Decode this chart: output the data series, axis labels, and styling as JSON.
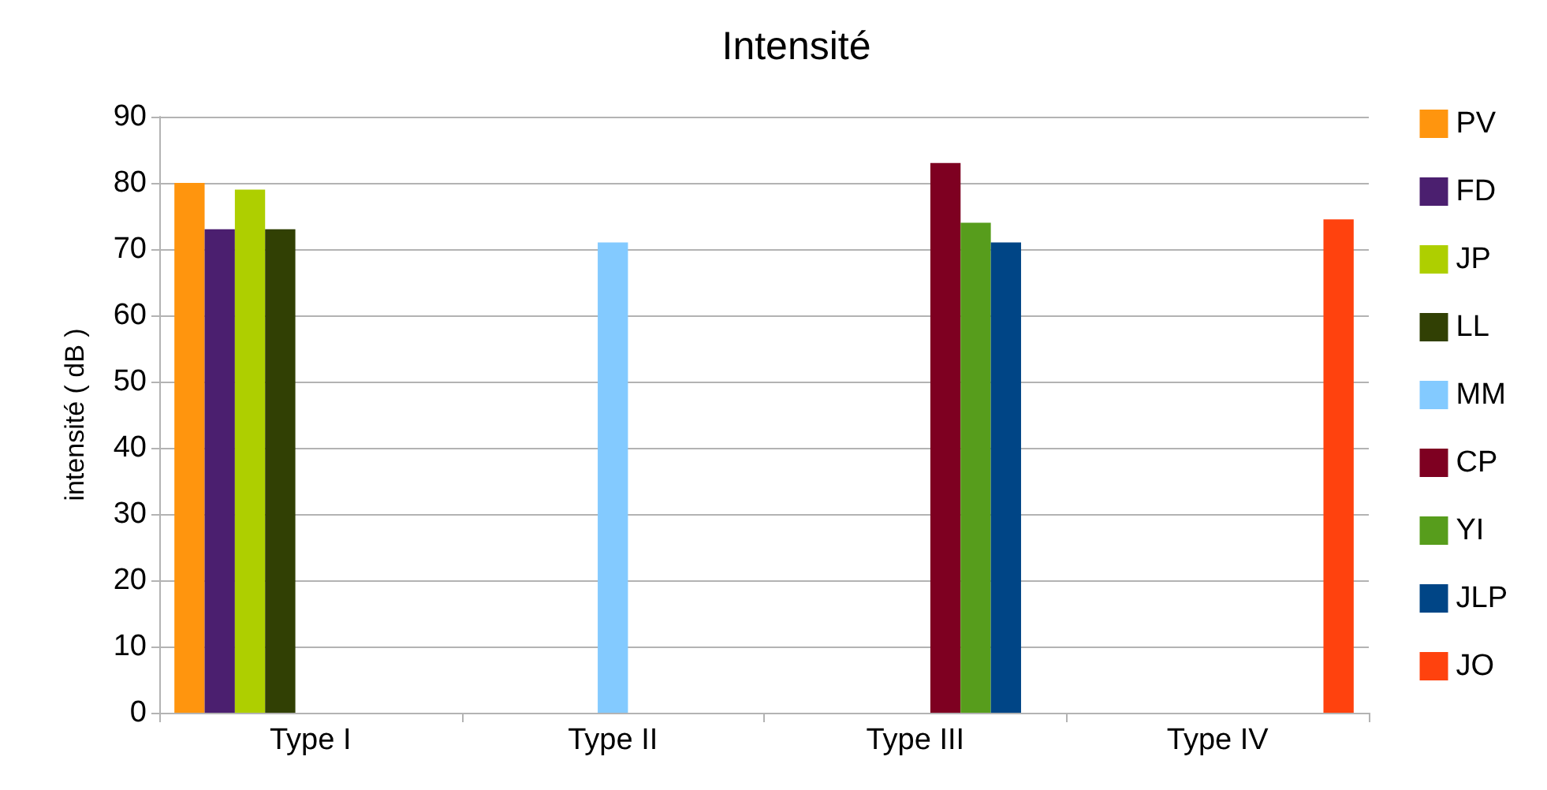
{
  "chart_data": {
    "type": "bar",
    "title": "Intensité",
    "ylabel": "intensité ( dB )",
    "categories": [
      "Type I",
      "Type II",
      "Type III",
      "Type IV"
    ],
    "series": [
      {
        "name": "PV",
        "color": "#ff950e",
        "values": [
          80,
          null,
          null,
          null
        ]
      },
      {
        "name": "FD",
        "color": "#4b1f6f",
        "values": [
          73,
          null,
          null,
          null
        ]
      },
      {
        "name": "JP",
        "color": "#aecf00",
        "values": [
          79,
          null,
          null,
          null
        ]
      },
      {
        "name": "LL",
        "color": "#314004",
        "values": [
          73,
          null,
          null,
          null
        ]
      },
      {
        "name": "MM",
        "color": "#83caff",
        "values": [
          null,
          71,
          null,
          null
        ]
      },
      {
        "name": "CP",
        "color": "#7e0021",
        "values": [
          null,
          null,
          83,
          null
        ]
      },
      {
        "name": "YI",
        "color": "#579d1c",
        "values": [
          null,
          null,
          74,
          null
        ]
      },
      {
        "name": "JLP",
        "color": "#004586",
        "values": [
          null,
          null,
          71,
          null
        ]
      },
      {
        "name": "JO",
        "color": "#ff420e",
        "values": [
          null,
          null,
          null,
          74.5
        ]
      }
    ],
    "ylim": [
      0,
      90
    ],
    "yticks": [
      0,
      10,
      20,
      30,
      40,
      50,
      60,
      70,
      80,
      90
    ],
    "grid": "y",
    "legend": "right"
  }
}
